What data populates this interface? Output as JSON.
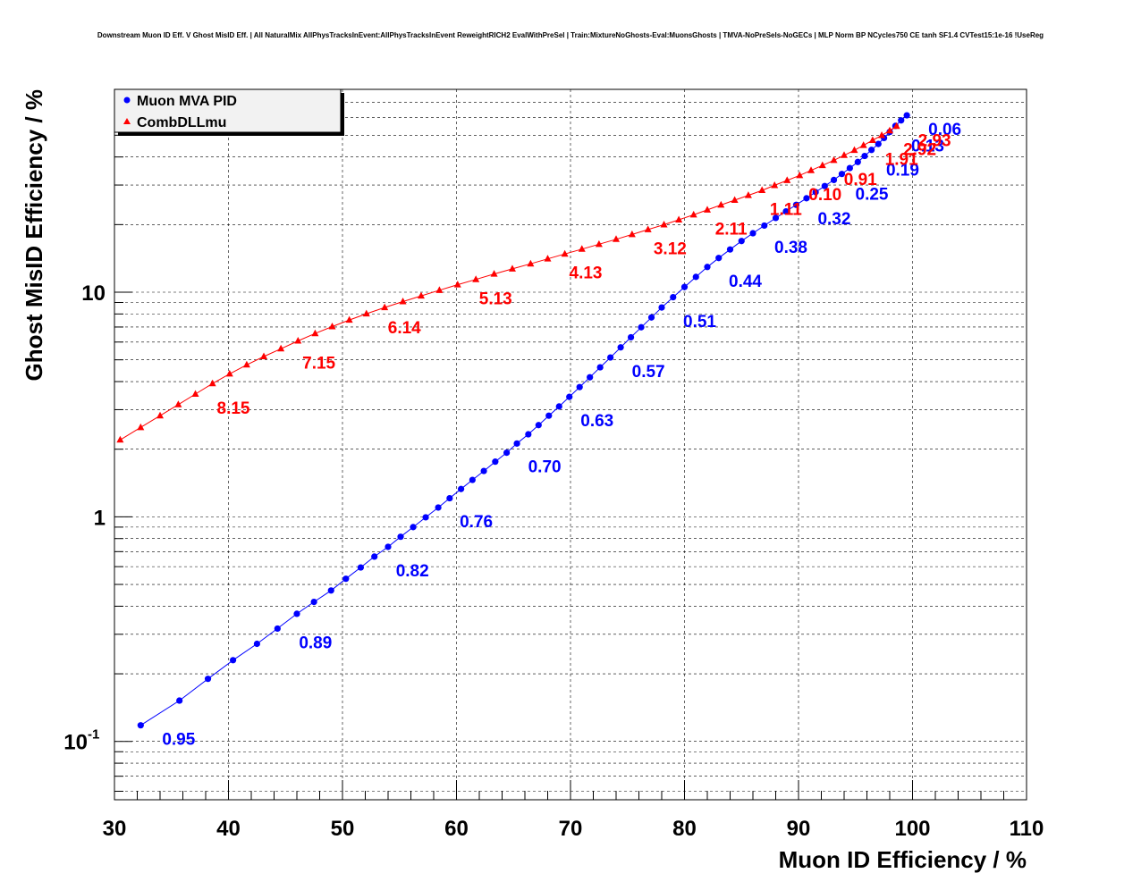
{
  "chart_data": {
    "type": "line",
    "title": "Downstream Muon ID Eff. V Ghost MisID Eff. | All NaturalMix AllPhysTracksInEvent:AllPhysTracksInEvent ReweightRICH2 EvalWithPreSel | Train:MixtureNoGhosts-Eval:MuonsGhosts | TMVA-NoPreSels-NoGECs | MLP Norm BP NCycles750 CE tanh SF1.4 CVTest15:1e-16 !UseReg",
    "xlabel": "Muon ID Efficiency / %",
    "ylabel": "Ghost MisID Efficiency / %",
    "xlim": [
      30,
      110
    ],
    "ylim": [
      0.055,
      80
    ],
    "yscale": "log",
    "grid": true,
    "legend_position": "top-left",
    "x_ticks": [
      {
        "value": 30,
        "label": "30"
      },
      {
        "value": 40,
        "label": "40"
      },
      {
        "value": 50,
        "label": "50"
      },
      {
        "value": 60,
        "label": "60"
      },
      {
        "value": 70,
        "label": "70"
      },
      {
        "value": 80,
        "label": "80"
      },
      {
        "value": 90,
        "label": "90"
      },
      {
        "value": 100,
        "label": "100"
      },
      {
        "value": 110,
        "label": "110"
      }
    ],
    "y_ticks": [
      {
        "value": 0.1,
        "base": "10",
        "exp": "-1"
      },
      {
        "value": 1,
        "base": "1",
        "exp": ""
      },
      {
        "value": 10,
        "base": "10",
        "exp": ""
      }
    ],
    "series": [
      {
        "name": "Muon MVA PID",
        "color": "#0000ff",
        "marker": "circle",
        "points": [
          [
            32.3,
            0.118
          ],
          [
            35.7,
            0.152
          ],
          [
            38.2,
            0.19
          ],
          [
            40.4,
            0.23
          ],
          [
            42.5,
            0.272
          ],
          [
            44.3,
            0.318
          ],
          [
            46.0,
            0.37
          ],
          [
            47.5,
            0.418
          ],
          [
            49.0,
            0.47
          ],
          [
            50.3,
            0.53
          ],
          [
            51.6,
            0.595
          ],
          [
            52.8,
            0.665
          ],
          [
            54.0,
            0.735
          ],
          [
            55.1,
            0.815
          ],
          [
            56.2,
            0.9
          ],
          [
            57.3,
            0.995
          ],
          [
            58.4,
            1.1
          ],
          [
            59.4,
            1.21
          ],
          [
            60.4,
            1.33
          ],
          [
            61.4,
            1.46
          ],
          [
            62.4,
            1.6
          ],
          [
            63.4,
            1.76
          ],
          [
            64.4,
            1.93
          ],
          [
            65.3,
            2.12
          ],
          [
            66.3,
            2.33
          ],
          [
            67.2,
            2.56
          ],
          [
            68.1,
            2.82
          ],
          [
            69.0,
            3.1
          ],
          [
            69.9,
            3.42
          ],
          [
            70.8,
            3.78
          ],
          [
            71.7,
            4.18
          ],
          [
            72.6,
            4.63
          ],
          [
            73.5,
            5.12
          ],
          [
            74.4,
            5.68
          ],
          [
            75.3,
            6.3
          ],
          [
            76.2,
            6.98
          ],
          [
            77.1,
            7.72
          ],
          [
            78.0,
            8.55
          ],
          [
            79.0,
            9.5
          ],
          [
            80.0,
            10.55
          ],
          [
            81.0,
            11.7
          ],
          [
            82.0,
            12.95
          ],
          [
            83.0,
            14.2
          ],
          [
            84.0,
            15.5
          ],
          [
            85.0,
            16.9
          ],
          [
            86.0,
            18.3
          ],
          [
            87.0,
            19.8
          ],
          [
            88.0,
            21.4
          ],
          [
            88.9,
            22.9
          ],
          [
            89.8,
            24.5
          ],
          [
            90.7,
            26.2
          ],
          [
            91.5,
            27.9
          ],
          [
            92.3,
            29.7
          ],
          [
            93.1,
            31.6
          ],
          [
            93.8,
            33.6
          ],
          [
            94.5,
            35.7
          ],
          [
            95.2,
            38.0
          ],
          [
            95.8,
            40.4
          ],
          [
            96.4,
            43.0
          ],
          [
            97.0,
            45.7
          ],
          [
            97.5,
            48.6
          ],
          [
            98.0,
            51.7
          ],
          [
            98.5,
            55.0
          ],
          [
            99.0,
            58.2
          ],
          [
            99.5,
            61.3
          ]
        ],
        "labels": [
          {
            "text": "0.95",
            "x": 32.3,
            "y": 0.118
          },
          {
            "text": "0.89",
            "x": 44.3,
            "y": 0.318
          },
          {
            "text": "0.82",
            "x": 52.8,
            "y": 0.665
          },
          {
            "text": "0.76",
            "x": 58.4,
            "y": 1.1
          },
          {
            "text": "0.70",
            "x": 64.4,
            "y": 1.93
          },
          {
            "text": "0.63",
            "x": 69.0,
            "y": 3.1
          },
          {
            "text": "0.57",
            "x": 73.5,
            "y": 5.12
          },
          {
            "text": "0.51",
            "x": 78.0,
            "y": 8.55
          },
          {
            "text": "0.44",
            "x": 82.0,
            "y": 12.95
          },
          {
            "text": "0.38",
            "x": 86.0,
            "y": 18.3
          },
          {
            "text": "0.32",
            "x": 89.8,
            "y": 24.5
          },
          {
            "text": "0.25",
            "x": 93.1,
            "y": 31.6
          },
          {
            "text": "0.19",
            "x": 95.8,
            "y": 40.4
          },
          {
            "text": "0.13",
            "x": 98.0,
            "y": 51.7
          },
          {
            "text": "0.06",
            "x": 99.5,
            "y": 61.3
          }
        ]
      },
      {
        "name": "CombDLLmu",
        "color": "#ff0000",
        "marker": "triangle",
        "points": [
          [
            30.5,
            2.2
          ],
          [
            32.3,
            2.5
          ],
          [
            34.0,
            2.82
          ],
          [
            35.6,
            3.16
          ],
          [
            37.1,
            3.52
          ],
          [
            38.6,
            3.92
          ],
          [
            40.1,
            4.33
          ],
          [
            41.6,
            4.75
          ],
          [
            43.1,
            5.17
          ],
          [
            44.6,
            5.6
          ],
          [
            46.1,
            6.07
          ],
          [
            47.6,
            6.55
          ],
          [
            49.1,
            7.03
          ],
          [
            50.6,
            7.52
          ],
          [
            52.1,
            8.02
          ],
          [
            53.7,
            8.55
          ],
          [
            55.3,
            9.08
          ],
          [
            56.9,
            9.63
          ],
          [
            58.5,
            10.2
          ],
          [
            60.1,
            10.8
          ],
          [
            61.7,
            11.4
          ],
          [
            63.3,
            12.05
          ],
          [
            64.9,
            12.7
          ],
          [
            66.5,
            13.38
          ],
          [
            68.0,
            14.08
          ],
          [
            69.5,
            14.8
          ],
          [
            71.0,
            15.55
          ],
          [
            72.5,
            16.35
          ],
          [
            74.0,
            17.2
          ],
          [
            75.4,
            18.08
          ],
          [
            76.8,
            19.0
          ],
          [
            78.2,
            19.98
          ],
          [
            79.5,
            21.0
          ],
          [
            80.8,
            22.1
          ],
          [
            82.0,
            23.25
          ],
          [
            83.2,
            24.45
          ],
          [
            84.4,
            25.7
          ],
          [
            85.6,
            27.0
          ],
          [
            86.8,
            28.4
          ],
          [
            87.9,
            29.9
          ],
          [
            89.0,
            31.45
          ],
          [
            90.1,
            33.1
          ],
          [
            91.1,
            34.85
          ],
          [
            92.1,
            36.7
          ],
          [
            93.1,
            38.65
          ],
          [
            94.0,
            40.7
          ],
          [
            94.9,
            42.85
          ],
          [
            95.7,
            45.1
          ],
          [
            96.5,
            47.45
          ],
          [
            97.3,
            49.9
          ],
          [
            98.0,
            52.4
          ],
          [
            98.6,
            54.8
          ]
        ],
        "labels": [
          {
            "text": "8.15",
            "x": 37.1,
            "y": 3.52
          },
          {
            "text": "7.15",
            "x": 44.6,
            "y": 5.6
          },
          {
            "text": "6.14",
            "x": 52.1,
            "y": 8.02
          },
          {
            "text": "5.13",
            "x": 60.1,
            "y": 10.8
          },
          {
            "text": "4.13",
            "x": 68.0,
            "y": 14.08
          },
          {
            "text": "3.12",
            "x": 75.4,
            "y": 18.08
          },
          {
            "text": "2.11",
            "x": 80.8,
            "y": 22.1
          },
          {
            "text": "1.11",
            "x": 85.6,
            "y": 27.0
          },
          {
            "text": "0.10",
            "x": 89.0,
            "y": 31.45
          },
          {
            "text": "0.91",
            "x": 92.1,
            "y": 36.7
          },
          {
            "text": "1.91",
            "x": 95.7,
            "y": 45.1
          },
          {
            "text": "2.92",
            "x": 97.3,
            "y": 49.9
          },
          {
            "text": "2.93",
            "x": 98.6,
            "y": 54.8
          }
        ]
      }
    ]
  }
}
